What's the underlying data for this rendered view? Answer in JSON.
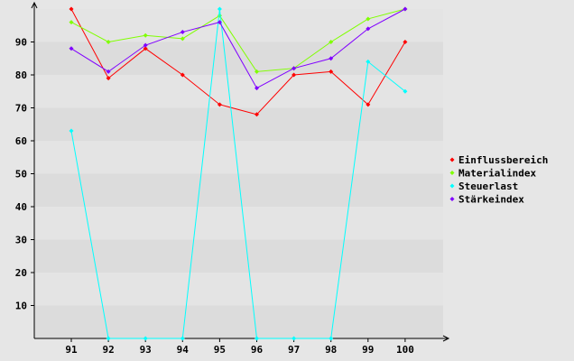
{
  "chart_data": {
    "type": "line",
    "title": "",
    "xlabel": "",
    "ylabel": "",
    "categories": [
      "91",
      "92",
      "93",
      "94",
      "95",
      "96",
      "97",
      "98",
      "99",
      "100"
    ],
    "ylim": [
      0,
      100
    ],
    "yticks": [
      10,
      20,
      30,
      40,
      50,
      60,
      70,
      80,
      90
    ],
    "grid": "horizontal bands",
    "legend_position": "right",
    "series": [
      {
        "name": "Einflussbereich",
        "color": "#ff0000",
        "values": [
          100,
          79,
          88,
          80,
          71,
          68,
          80,
          81,
          71,
          90
        ]
      },
      {
        "name": "Materialindex",
        "color": "#80ff00",
        "values": [
          96,
          90,
          92,
          91,
          98,
          81,
          82,
          90,
          97,
          100
        ]
      },
      {
        "name": "Steuerlast",
        "color": "#00ffff",
        "values": [
          63,
          0,
          0,
          0,
          100,
          0,
          0,
          0,
          84,
          75
        ]
      },
      {
        "name": "Stärkeindex",
        "color": "#8000ff",
        "values": [
          88,
          81,
          89,
          93,
          96,
          76,
          82,
          85,
          94,
          100
        ]
      }
    ]
  }
}
